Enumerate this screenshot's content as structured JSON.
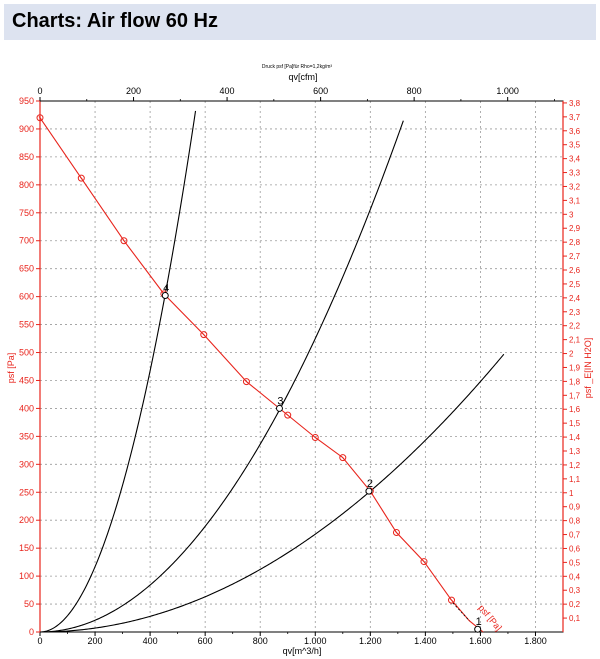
{
  "header": {
    "title": "Charts: Air flow 60 Hz"
  },
  "chart_data": {
    "type": "line",
    "top_label": "Druck psf  [Pa]für Rho=1,2kg/m³",
    "x_top_label": "qv[cfm]",
    "x_bottom_label": "qv[m^3/h]",
    "y_left_label": "psf  [Pa]",
    "y_right_label": "psf _E[IN H2O]",
    "xlim": [
      0,
      1900
    ],
    "ylim": [
      0,
      950
    ],
    "x_ticks": [
      0,
      200,
      400,
      600,
      800,
      1000,
      1200,
      1400,
      1600,
      1800
    ],
    "x_tick_labels": [
      "0",
      "200",
      "400",
      "600",
      "800",
      "1.000",
      "1.200",
      "1.400",
      "1.600",
      "1.800"
    ],
    "y_ticks": [
      0,
      50,
      100,
      150,
      200,
      250,
      300,
      350,
      400,
      450,
      500,
      550,
      600,
      650,
      700,
      750,
      800,
      850,
      900,
      950
    ],
    "y_tick_labels": [
      "0",
      "50",
      "100",
      "150",
      "200",
      "250",
      "300",
      "350",
      "400",
      "450",
      "500",
      "550",
      "600",
      "650",
      "700",
      "750",
      "800",
      "850",
      "900",
      "950"
    ],
    "cfm_ticks": [
      0,
      200,
      400,
      600,
      800,
      1000
    ],
    "cfm_tick_labels": [
      "0",
      "200",
      "400",
      "600",
      "800",
      "1.000"
    ],
    "inh2o_ticks": [
      0.1,
      0.2,
      0.3,
      0.4,
      0.5,
      0.6,
      0.7,
      0.8,
      0.9,
      1.0,
      1.1,
      1.2,
      1.3,
      1.4,
      1.5,
      1.6,
      1.7,
      1.8,
      1.9,
      2.0,
      2.1,
      2.2,
      2.3,
      2.4,
      2.5,
      2.6,
      2.7,
      2.8,
      2.9,
      3.0,
      3.1,
      3.2,
      3.3,
      3.4,
      3.5,
      3.6,
      3.7,
      3.8
    ],
    "inh2o_tick_labels": [
      "0,1",
      "0,2",
      "0,3",
      "0,4",
      "0,5",
      "0,6",
      "0,7",
      "0,8",
      "0,9",
      "1",
      "1,1",
      "1,2",
      "1,3",
      "1,4",
      "1,5",
      "1,6",
      "1,7",
      "1,8",
      "1,9",
      "2",
      "2,1",
      "2,2",
      "2,3",
      "2,4",
      "2,5",
      "2,6",
      "2,7",
      "2,8",
      "2,9",
      "3",
      "3,1",
      "3,2",
      "3,3",
      "3,4",
      "3,5",
      "3,6",
      "3,7",
      "3,8"
    ],
    "grid": true,
    "colors": {
      "fan_curve": "#e8241c",
      "system": "#000000",
      "grid": "#9a9a9a"
    },
    "fan_curve": {
      "name": "psf [Pa]",
      "x": [
        0,
        150,
        305,
        450,
        595,
        750,
        900,
        1000,
        1100,
        1200,
        1295,
        1395,
        1495,
        1560,
        1610
      ],
      "y": [
        920,
        812,
        700,
        605,
        532,
        448,
        388,
        348,
        312,
        252,
        178,
        126,
        57,
        20,
        0
      ],
      "markers": [
        0,
        150,
        305,
        450,
        595,
        750,
        900,
        1000,
        1100,
        1200,
        1295,
        1395,
        1495
      ]
    },
    "system_curves": [
      {
        "k": 0.00292,
        "x_max": 565
      },
      {
        "k": 0.000525,
        "x_max": 1320
      },
      {
        "k": 0.000175,
        "x_max": 1685
      }
    ],
    "operating_points": [
      {
        "label": "1",
        "x": 1590,
        "y": 5
      },
      {
        "label": "2",
        "x": 1195,
        "y": 252
      },
      {
        "label": "3",
        "x": 870,
        "y": 400
      },
      {
        "label": "4",
        "x": 455,
        "y": 602
      }
    ]
  }
}
